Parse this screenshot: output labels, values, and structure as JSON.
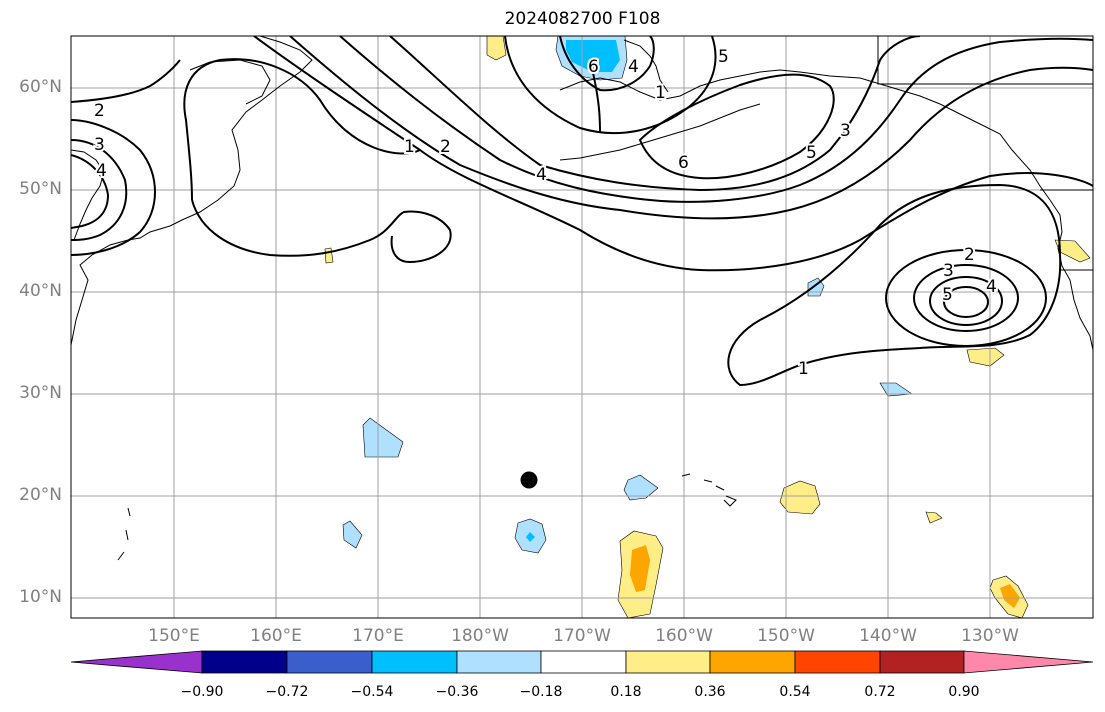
{
  "title": "2024082700 F108",
  "lat_labels": [
    "60°N",
    "50°N",
    "40°N",
    "30°N",
    "20°N",
    "10°N"
  ],
  "lon_labels": [
    "150°E",
    "160°E",
    "170°E",
    "180°W",
    "170°W",
    "160°W",
    "150°W",
    "140°W",
    "130°W"
  ],
  "contour_labels": [
    "1",
    "2",
    "3",
    "4",
    "5",
    "6"
  ],
  "colorbar": {
    "ticks": [
      "−0.90",
      "−0.72",
      "−0.54",
      "−0.36",
      "−0.18",
      "0.18",
      "0.36",
      "0.54",
      "0.72",
      "0.90"
    ],
    "colors": [
      "#9932cc",
      "#00008b",
      "#3a5fcd",
      "#00bfff",
      "#b0e0ff",
      "#ffffff",
      "#ffee88",
      "#ffa500",
      "#ff4500",
      "#b22222",
      "#ff88aa"
    ]
  },
  "marker": "storm-center-dot"
}
